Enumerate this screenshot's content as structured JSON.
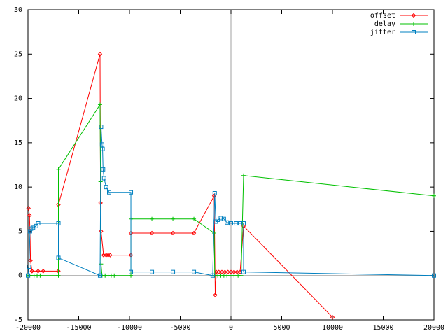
{
  "chart_data": {
    "type": "line",
    "xlim": [
      -20000,
      20000
    ],
    "ylim": [
      -5,
      30
    ],
    "xticks": [
      -20000,
      -15000,
      -10000,
      -5000,
      0,
      5000,
      10000,
      15000,
      20000
    ],
    "yticks": [
      -5,
      0,
      5,
      10,
      15,
      20,
      25,
      30
    ],
    "zeroaxis": true,
    "legend": "top-right",
    "series": [
      {
        "name": "offset",
        "color": "#ff0000",
        "marker": "diamond",
        "x": [
          -19950,
          -19850,
          -19800,
          -19750,
          -19600,
          -19000,
          -18500,
          -17000,
          -17000,
          -12900,
          -12850,
          -12800,
          -12550,
          -12300,
          -12100,
          -11900,
          -9860,
          -9860,
          -7790,
          -5720,
          -3650,
          -1655,
          -1550,
          -1450,
          -1200,
          -900,
          -600,
          -300,
          0,
          300,
          600,
          900,
          1240,
          10000
        ],
        "values": [
          7.6,
          6.8,
          5.0,
          1.7,
          0.5,
          0.5,
          0.5,
          0.5,
          8,
          25,
          8.2,
          5.0,
          2.3,
          2.3,
          2.3,
          2.3,
          2.3,
          4.8,
          4.8,
          4.8,
          4.8,
          9.0,
          -2.2,
          0.4,
          0.4,
          0.4,
          0.4,
          0.4,
          0.4,
          0.4,
          0.4,
          0.4,
          5.6,
          -4.7
        ]
      },
      {
        "name": "delay",
        "color": "#00c000",
        "marker": "plus",
        "x": [
          -20000,
          -19700,
          -19400,
          -19100,
          -18800,
          -17000,
          -17000,
          -12900,
          -12850,
          -12800,
          -12700,
          -12400,
          -12100,
          -11800,
          -11500,
          -9860,
          -9860,
          -7790,
          -5720,
          -3650,
          -1655,
          -1600,
          -1300,
          -1000,
          -700,
          -400,
          -100,
          300,
          700,
          1000,
          1240,
          20000
        ],
        "values": [
          0,
          0,
          0,
          0,
          0,
          0,
          12,
          19.3,
          10.6,
          1.3,
          0,
          0,
          0,
          0,
          0,
          0,
          6.4,
          6.4,
          6.4,
          6.4,
          4.8,
          0,
          0,
          0,
          0,
          0,
          0,
          0,
          0,
          0,
          11.3,
          9.0
        ]
      },
      {
        "name": "jitter",
        "color": "#0080c0",
        "marker": "square",
        "x": [
          -20000,
          -19900,
          -19800,
          -19700,
          -19500,
          -19200,
          -19000,
          -17000,
          -17000,
          -12900,
          -12800,
          -12700,
          -12650,
          -12600,
          -12500,
          -12300,
          -12000,
          -9860,
          -9860,
          -7790,
          -5720,
          -3650,
          -1800,
          -1600,
          -1500,
          -1300,
          -1000,
          -700,
          -400,
          0,
          500,
          900,
          1240,
          1240,
          20000
        ],
        "values": [
          0,
          1,
          5,
          5.3,
          5.4,
          5.6,
          5.9,
          5.9,
          2.0,
          0,
          16.8,
          14.8,
          14.3,
          12,
          11,
          10,
          9.4,
          9.4,
          0.4,
          0.4,
          0.4,
          0.4,
          0,
          9.3,
          6.1,
          6.3,
          6.5,
          6.4,
          6.0,
          5.9,
          5.9,
          5.9,
          5.9,
          0.4,
          0
        ]
      }
    ]
  }
}
